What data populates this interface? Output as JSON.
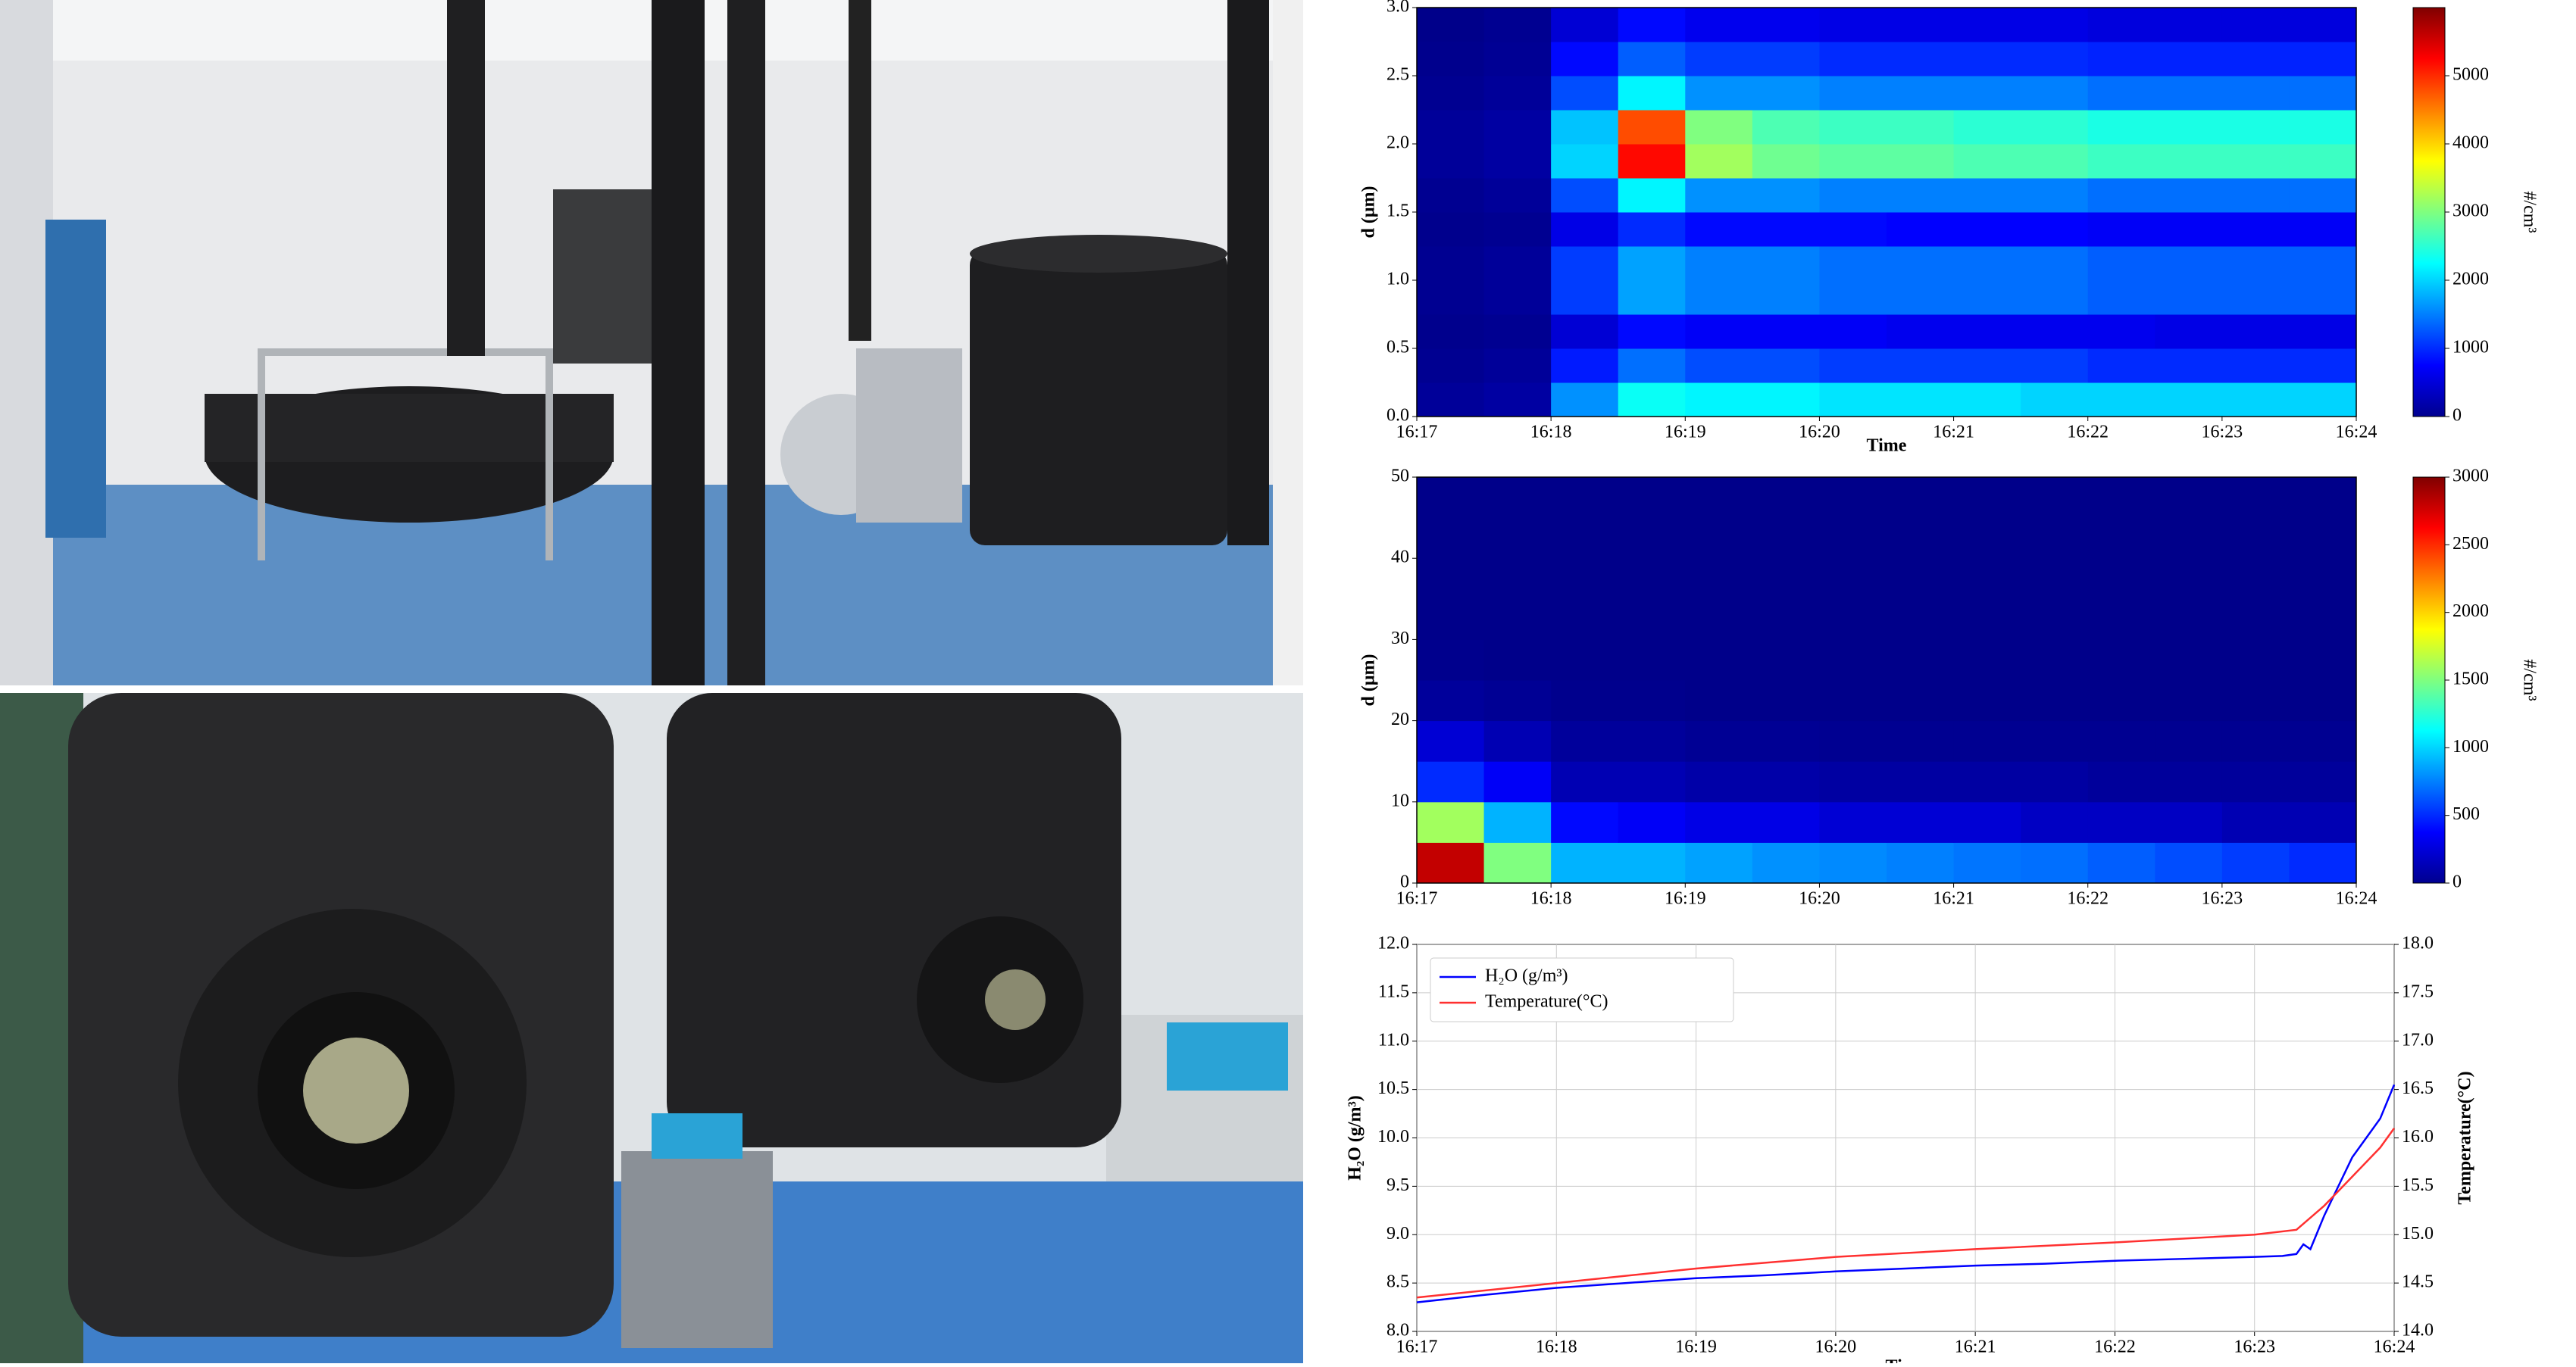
{
  "chart_data": [
    {
      "type": "heatmap",
      "xlabel": "Time",
      "ylabel": "d (μm)",
      "colorbar_label": "#/cm³",
      "cmap": "jet",
      "xlim": [
        0,
        7
      ],
      "xticks": [
        {
          "value": 0,
          "label": "16:17"
        },
        {
          "value": 1,
          "label": "16:18"
        },
        {
          "value": 2,
          "label": "16:19"
        },
        {
          "value": 3,
          "label": "16:20"
        },
        {
          "value": 4,
          "label": "16:21"
        },
        {
          "value": 5,
          "label": "16:22"
        },
        {
          "value": 6,
          "label": "16:23"
        },
        {
          "value": 7,
          "label": "16:24"
        }
      ],
      "ylim": [
        0,
        3
      ],
      "yticks": [
        {
          "value": 0,
          "label": "0.0"
        },
        {
          "value": 0.5,
          "label": "0.5"
        },
        {
          "value": 1,
          "label": "1.0"
        },
        {
          "value": 1.5,
          "label": "1.5"
        },
        {
          "value": 2,
          "label": "2.0"
        },
        {
          "value": 2.5,
          "label": "2.5"
        },
        {
          "value": 3,
          "label": "3.0"
        }
      ],
      "clim": [
        0,
        6000
      ],
      "colorbar_ticks": [
        0,
        1000,
        2000,
        3000,
        4000,
        5000
      ],
      "x_bins": [
        0,
        0.5,
        1,
        1.5,
        2,
        2.5,
        3,
        3.5,
        4,
        4.5,
        5,
        5.5,
        6,
        6.5,
        7
      ],
      "y_bins": [
        0,
        0.25,
        0.5,
        0.75,
        1,
        1.25,
        1.5,
        1.75,
        2,
        2.25,
        2.5,
        2.75,
        3
      ],
      "values": [
        [
          150,
          200,
          1600,
          2300,
          2200,
          2200,
          2100,
          2100,
          2100,
          2000,
          2000,
          2000,
          2000,
          2000
        ],
        [
          100,
          150,
          900,
          1400,
          1200,
          1200,
          1100,
          1100,
          1100,
          1100,
          1000,
          1000,
          1000,
          1000
        ],
        [
          80,
          100,
          500,
          800,
          700,
          700,
          700,
          650,
          650,
          650,
          650,
          600,
          600,
          600
        ],
        [
          100,
          150,
          1100,
          1700,
          1500,
          1500,
          1400,
          1400,
          1400,
          1400,
          1300,
          1300,
          1300,
          1300
        ],
        [
          100,
          150,
          1100,
          1700,
          1500,
          1500,
          1400,
          1400,
          1400,
          1400,
          1300,
          1300,
          1300,
          1300
        ],
        [
          80,
          100,
          600,
          1000,
          800,
          800,
          800,
          750,
          750,
          750,
          700,
          700,
          700,
          700
        ],
        [
          100,
          150,
          1200,
          2200,
          1600,
          1600,
          1500,
          1500,
          1500,
          1500,
          1400,
          1400,
          1400,
          1400
        ],
        [
          150,
          200,
          2000,
          5200,
          3200,
          2900,
          2800,
          2800,
          2700,
          2700,
          2600,
          2600,
          2600,
          2600
        ],
        [
          150,
          200,
          1900,
          4800,
          3000,
          2700,
          2600,
          2600,
          2500,
          2500,
          2400,
          2400,
          2400,
          2400
        ],
        [
          100,
          150,
          1200,
          2200,
          1600,
          1600,
          1500,
          1500,
          1500,
          1500,
          1400,
          1400,
          1400,
          1400
        ],
        [
          80,
          120,
          800,
          1300,
          1100,
          1100,
          1000,
          1000,
          1000,
          1000,
          950,
          950,
          950,
          950
        ],
        [
          60,
          100,
          500,
          800,
          650,
          650,
          600,
          600,
          600,
          600,
          550,
          550,
          550,
          550
        ]
      ]
    },
    {
      "type": "heatmap",
      "ylabel": "d (μm)",
      "colorbar_label": "#/cm³",
      "cmap": "jet",
      "xlim": [
        0,
        7
      ],
      "xticks": [
        {
          "value": 0,
          "label": "16:17"
        },
        {
          "value": 1,
          "label": "16:18"
        },
        {
          "value": 2,
          "label": "16:19"
        },
        {
          "value": 3,
          "label": "16:20"
        },
        {
          "value": 4,
          "label": "16:21"
        },
        {
          "value": 5,
          "label": "16:22"
        },
        {
          "value": 6,
          "label": "16:23"
        },
        {
          "value": 7,
          "label": "16:24"
        }
      ],
      "ylim": [
        0,
        50
      ],
      "yticks": [
        0,
        10,
        20,
        30,
        40,
        50
      ],
      "clim": [
        0,
        3000
      ],
      "colorbar_ticks": [
        0,
        500,
        1000,
        1500,
        2000,
        2500,
        3000
      ],
      "x_bins": [
        0,
        0.5,
        1,
        1.5,
        2,
        2.5,
        3,
        3.5,
        4,
        4.5,
        5,
        5.5,
        6,
        6.5,
        7
      ],
      "y_bins": [
        0,
        5,
        10,
        15,
        20,
        25,
        30,
        35,
        40,
        45,
        50
      ],
      "values": [
        [
          2800,
          1500,
          900,
          900,
          850,
          800,
          780,
          750,
          720,
          700,
          650,
          600,
          550,
          500
        ],
        [
          1600,
          900,
          400,
          350,
          300,
          300,
          250,
          250,
          250,
          200,
          200,
          200,
          150,
          150
        ],
        [
          500,
          350,
          150,
          150,
          120,
          120,
          100,
          100,
          100,
          100,
          80,
          80,
          80,
          80
        ],
        [
          250,
          150,
          80,
          80,
          60,
          60,
          50,
          50,
          50,
          50,
          50,
          50,
          50,
          50
        ],
        [
          80,
          60,
          40,
          40,
          30,
          30,
          30,
          30,
          30,
          30,
          30,
          30,
          30,
          30
        ],
        [
          40,
          30,
          30,
          30,
          30,
          30,
          30,
          30,
          30,
          30,
          30,
          30,
          30,
          30
        ],
        [
          30,
          30,
          30,
          30,
          30,
          30,
          30,
          30,
          30,
          30,
          30,
          30,
          30,
          30
        ],
        [
          30,
          30,
          30,
          30,
          30,
          30,
          30,
          30,
          30,
          30,
          30,
          30,
          30,
          30
        ],
        [
          30,
          30,
          30,
          30,
          30,
          30,
          30,
          30,
          30,
          30,
          30,
          30,
          30,
          30
        ],
        [
          30,
          30,
          30,
          30,
          30,
          30,
          30,
          30,
          30,
          30,
          30,
          30,
          30,
          30
        ]
      ]
    },
    {
      "type": "line",
      "xlabel": "Time",
      "ylabel": "H₂O (g/m³)",
      "y2label": "Temperature(°C)",
      "grid": true,
      "legend": "upper left",
      "xlim": [
        0,
        7
      ],
      "xticks": [
        {
          "value": 0,
          "label": "16:17"
        },
        {
          "value": 1,
          "label": "16:18"
        },
        {
          "value": 2,
          "label": "16:19"
        },
        {
          "value": 3,
          "label": "16:20"
        },
        {
          "value": 4,
          "label": "16:21"
        },
        {
          "value": 5,
          "label": "16:22"
        },
        {
          "value": 6,
          "label": "16:23"
        },
        {
          "value": 7,
          "label": "16:24"
        }
      ],
      "ylim": [
        8,
        12
      ],
      "yticks": [
        {
          "value": 8,
          "label": "8.0"
        },
        {
          "value": 8.5,
          "label": "8.5"
        },
        {
          "value": 9,
          "label": "9.0"
        },
        {
          "value": 9.5,
          "label": "9.5"
        },
        {
          "value": 10,
          "label": "10.0"
        },
        {
          "value": 10.5,
          "label": "10.5"
        },
        {
          "value": 11,
          "label": "11.0"
        },
        {
          "value": 11.5,
          "label": "11.5"
        },
        {
          "value": 12,
          "label": "12.0"
        }
      ],
      "y2lim": [
        14,
        18
      ],
      "y2ticks": [
        {
          "value": 14,
          "label": "14.0"
        },
        {
          "value": 14.5,
          "label": "14.5"
        },
        {
          "value": 15,
          "label": "15.0"
        },
        {
          "value": 15.5,
          "label": "15.5"
        },
        {
          "value": 16,
          "label": "16.0"
        },
        {
          "value": 16.5,
          "label": "16.5"
        },
        {
          "value": 17,
          "label": "17.0"
        },
        {
          "value": 17.5,
          "label": "17.5"
        },
        {
          "value": 18,
          "label": "18.0"
        }
      ],
      "series": [
        {
          "name": "H₂O (g/m³)",
          "color": "#0000ff",
          "x": [
            0,
            0.5,
            1,
            1.5,
            2,
            2.5,
            3,
            3.5,
            4,
            4.5,
            5,
            5.5,
            6,
            6.2,
            6.3,
            6.35,
            6.4,
            6.5,
            6.6,
            6.7,
            6.8,
            6.9,
            7
          ],
          "values": [
            8.3,
            8.38,
            8.45,
            8.5,
            8.55,
            8.58,
            8.62,
            8.65,
            8.68,
            8.7,
            8.73,
            8.75,
            8.77,
            8.78,
            8.8,
            8.9,
            8.85,
            9.2,
            9.5,
            9.8,
            10,
            10.2,
            10.55
          ]
        },
        {
          "name": "Temperature(°C)",
          "color": "#ff3030",
          "axis": "y2",
          "x": [
            0,
            1,
            2,
            3,
            4,
            5,
            6,
            6.3,
            6.5,
            6.7,
            6.9,
            7
          ],
          "values": [
            14.35,
            14.5,
            14.65,
            14.77,
            14.85,
            14.92,
            15,
            15.05,
            15.3,
            15.6,
            15.9,
            16.1
          ]
        }
      ]
    }
  ]
}
